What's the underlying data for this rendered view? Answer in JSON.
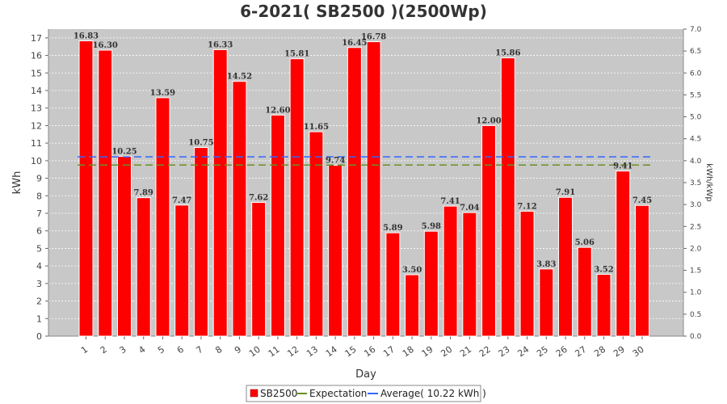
{
  "chart_data": {
    "type": "bar",
    "title": "6-2021( SB2500 )(2500Wp)",
    "xlabel": "Day",
    "ylabel": "kWh",
    "y2label": "kWh/kWp",
    "ylim": [
      0,
      17.5
    ],
    "y2lim": [
      0,
      7.0
    ],
    "yticks": [
      0,
      1,
      2,
      3,
      4,
      5,
      6,
      7,
      8,
      9,
      10,
      11,
      12,
      13,
      14,
      15,
      16,
      17
    ],
    "y2ticks": [
      "0.0",
      "0.5",
      "1.0",
      "1.5",
      "2.0",
      "2.5",
      "3.0",
      "3.5",
      "4.0",
      "4.5",
      "5.0",
      "5.5",
      "6.0",
      "6.5",
      "7.0"
    ],
    "categories": [
      "1",
      "2",
      "3",
      "4",
      "5",
      "6",
      "7",
      "8",
      "9",
      "10",
      "11",
      "12",
      "13",
      "14",
      "15",
      "16",
      "17",
      "18",
      "19",
      "20",
      "21",
      "22",
      "23",
      "24",
      "25",
      "26",
      "27",
      "28",
      "29",
      "30"
    ],
    "series": [
      {
        "name": "SB2500",
        "color": "#ff0000",
        "values": [
          16.83,
          16.3,
          10.25,
          7.89,
          13.59,
          7.47,
          10.75,
          16.33,
          14.52,
          7.62,
          12.6,
          15.81,
          11.65,
          9.74,
          16.45,
          16.78,
          5.89,
          3.5,
          5.98,
          7.41,
          7.04,
          12.0,
          15.86,
          7.12,
          3.83,
          7.91,
          5.06,
          3.52,
          9.41,
          7.45
        ],
        "labels": [
          "16.83",
          "16.30",
          "10.25",
          "7.89",
          "13.59",
          "7.47",
          "10.75",
          "16.33",
          "14.52",
          "7.62",
          "12.60",
          "15.81",
          "11.65",
          "9.74",
          "16.45",
          "16.78",
          "5.89",
          "3.50",
          "5.98",
          "7.41",
          "7.04",
          "12.00",
          "15.86",
          "7.12",
          "3.83",
          "7.91",
          "5.06",
          "3.52",
          "9.41",
          "7.45"
        ]
      }
    ],
    "expectation": {
      "name": "Expectation",
      "value": 9.75,
      "color": "#6b8e23"
    },
    "average": {
      "name": "Average( 10.22 kWh )",
      "value": 10.22,
      "color": "#3366ff"
    },
    "grid": true,
    "legend_position": "bottom"
  }
}
